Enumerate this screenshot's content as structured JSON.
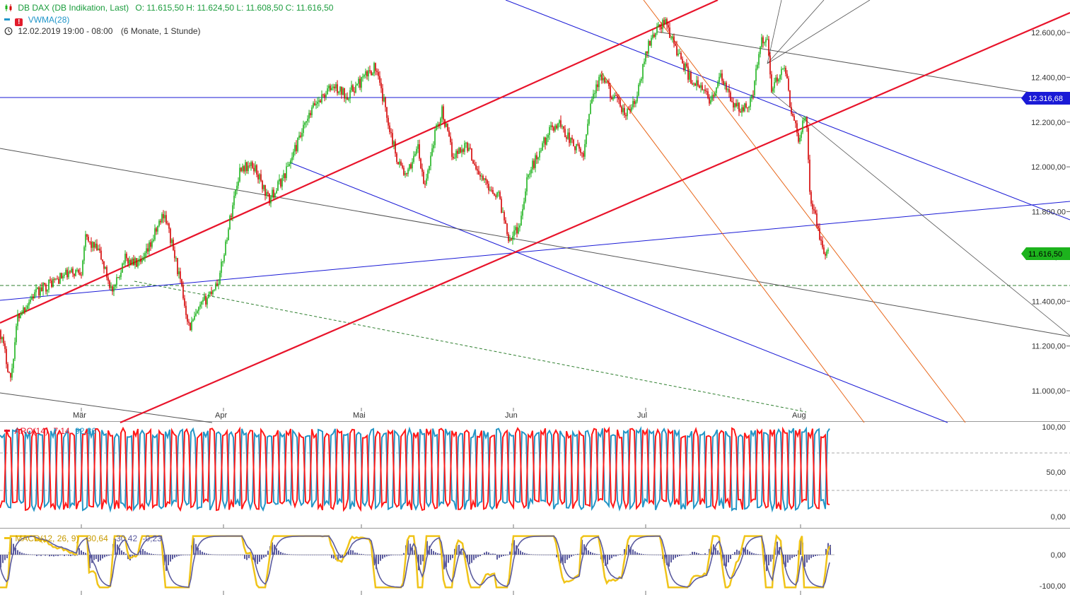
{
  "header": {
    "instrument": "DB DAX (DB Indikation, Last)",
    "ohlc": "O: 11.615,50  H: 11.624,50  L: 11.608,50  C: 11.616,50",
    "indicator": "VWMA(28)",
    "date_range": "12.02.2019 19:00 - 08:00",
    "period": "(6 Monate, 1 Stunde)"
  },
  "colors": {
    "up": "#1db31d",
    "down": "#d40000",
    "trend_red": "#e8142b",
    "blue": "#1a1ad6",
    "gray": "#555555",
    "orange": "#e8661a",
    "green_dash": "#2f7f2f",
    "aro_up": "#2596c6",
    "aro_down": "#ff1a1a",
    "macd": "#f0c419",
    "signal": "#5b5b9e"
  },
  "chart_data": [
    {
      "type": "candlestick",
      "title": "DB DAX (DB Indikation, Last)",
      "x_labels": [
        "Mär",
        "Apr",
        "Mai",
        "Jun",
        "Jul",
        "Aug"
      ],
      "y_ticks": [
        "12.600,00",
        "12.400,00",
        "12.200,00",
        "12.000,00",
        "11.800,00",
        "11.600,00",
        "11.400,00",
        "11.200,00",
        "11.000,00"
      ],
      "ylim": [
        10850,
        12680
      ],
      "last_price": "11.616,50",
      "level_line": "12.316,68",
      "path_points": [
        [
          0,
          11270
        ],
        [
          15,
          11050
        ],
        [
          25,
          11330
        ],
        [
          45,
          11420
        ],
        [
          70,
          11480
        ],
        [
          95,
          11520
        ],
        [
          115,
          11540
        ],
        [
          120,
          11680
        ],
        [
          140,
          11620
        ],
        [
          160,
          11430
        ],
        [
          175,
          11590
        ],
        [
          200,
          11560
        ],
        [
          215,
          11670
        ],
        [
          232,
          11800
        ],
        [
          250,
          11560
        ],
        [
          268,
          11280
        ],
        [
          285,
          11380
        ],
        [
          310,
          11500
        ],
        [
          330,
          11850
        ],
        [
          340,
          12000
        ],
        [
          360,
          12000
        ],
        [
          380,
          11850
        ],
        [
          400,
          11950
        ],
        [
          420,
          12100
        ],
        [
          445,
          12280
        ],
        [
          470,
          12360
        ],
        [
          490,
          12320
        ],
        [
          510,
          12380
        ],
        [
          530,
          12450
        ],
        [
          545,
          12260
        ],
        [
          560,
          12050
        ],
        [
          575,
          11950
        ],
        [
          590,
          12100
        ],
        [
          600,
          11900
        ],
        [
          615,
          12150
        ],
        [
          625,
          12250
        ],
        [
          640,
          12050
        ],
        [
          660,
          12100
        ],
        [
          680,
          11950
        ],
        [
          705,
          11870
        ],
        [
          720,
          11680
        ],
        [
          735,
          11740
        ],
        [
          745,
          11950
        ],
        [
          760,
          12050
        ],
        [
          775,
          12150
        ],
        [
          790,
          12200
        ],
        [
          810,
          12100
        ],
        [
          825,
          12050
        ],
        [
          835,
          12300
        ],
        [
          850,
          12400
        ],
        [
          870,
          12300
        ],
        [
          885,
          12230
        ],
        [
          900,
          12300
        ],
        [
          915,
          12530
        ],
        [
          925,
          12600
        ],
        [
          940,
          12650
        ],
        [
          960,
          12500
        ],
        [
          975,
          12400
        ],
        [
          990,
          12350
        ],
        [
          1005,
          12300
        ],
        [
          1020,
          12400
        ],
        [
          1035,
          12280
        ],
        [
          1050,
          12250
        ],
        [
          1065,
          12320
        ],
        [
          1075,
          12560
        ],
        [
          1085,
          12560
        ],
        [
          1090,
          12350
        ],
        [
          1100,
          12400
        ],
        [
          1110,
          12430
        ],
        [
          1120,
          12230
        ],
        [
          1130,
          12120
        ],
        [
          1140,
          12250
        ],
        [
          1145,
          11900
        ],
        [
          1150,
          11800
        ],
        [
          1155,
          11750
        ],
        [
          1160,
          11680
        ],
        [
          1165,
          11600
        ],
        [
          1172,
          11617
        ]
      ]
    },
    {
      "type": "line",
      "title": "ARO(14)",
      "values_text": [
        "7,14",
        "92,86"
      ],
      "y_ticks": [
        "100,00",
        "50,00",
        "0,00"
      ],
      "ylim": [
        0,
        100
      ]
    },
    {
      "type": "line",
      "title": "MACD(12, 26, 9)",
      "values_text": [
        "-30,64",
        "-30,42",
        "-0,23"
      ],
      "y_ticks": [
        "0,00",
        "-100,00"
      ],
      "ylim": [
        -110,
        50
      ]
    }
  ]
}
